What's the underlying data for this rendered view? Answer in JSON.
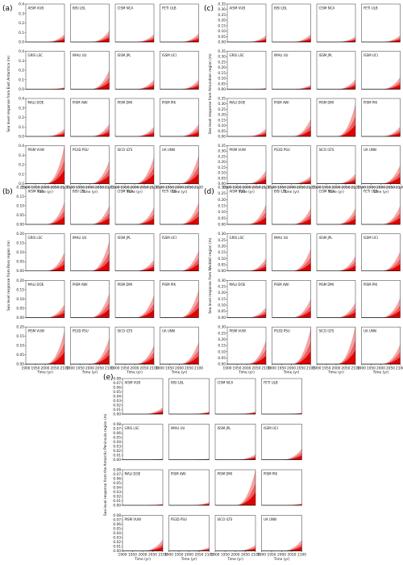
{
  "figure": {
    "models": [
      "AISM VUB",
      "BISI LBL",
      "CISM NCA",
      "FETI ULB",
      "GRIS LSC",
      "IMAU UU",
      "ISSM JPL",
      "ISSM UCI",
      "MALI DOE",
      "PISM AWI",
      "PISM DMI",
      "PISM PIK",
      "PISM VUW",
      "PS3D PSU",
      "SICO ILTS",
      "UA UNN"
    ],
    "x_ticks": [
      1900,
      1950,
      2000,
      2050,
      2100
    ],
    "x_tick_labels": [
      "1900",
      "1950",
      "2000",
      "2050",
      "2100"
    ],
    "xlabel": "Time (yr)",
    "colors": {
      "outer_band": "#f4a3a3",
      "mid_band": "#ef5b5b",
      "inner_band": "#e00000",
      "axis": "#000000",
      "baseline": "#000000"
    }
  },
  "chart_data": [
    {
      "panel": "(a)",
      "type": "area",
      "ylabel": "Sea level response from East Antarctica (m)",
      "ylim": [
        0,
        0.4
      ],
      "yticks": [
        0.0,
        0.1,
        0.2,
        0.3,
        0.4
      ],
      "ytick_labels": [
        "0.0",
        "0.1",
        "0.2",
        "0.3",
        "0.4"
      ],
      "xlim": [
        1900,
        2100
      ],
      "onset_year": 2000,
      "series_max_2100": [
        0.08,
        0.12,
        0.08,
        0.09,
        0.02,
        0.2,
        0.1,
        0.1,
        0.08,
        0.13,
        0.1,
        0.13,
        0.4,
        0.24,
        0.28,
        0.3
      ]
    },
    {
      "panel": "(b)",
      "type": "area",
      "ylabel": "Sea level response from Ross region (m)",
      "ylim": [
        0,
        0.2
      ],
      "yticks": [
        0.0,
        0.05,
        0.1,
        0.15,
        0.2
      ],
      "ytick_labels": [
        "0.00",
        "0.05",
        "0.10",
        "0.15",
        "0.20"
      ],
      "xlim": [
        1900,
        2100
      ],
      "onset_year": 2000,
      "series_max_2100": [
        0.12,
        0.1,
        0.09,
        0.12,
        0.1,
        0.16,
        0.06,
        0.11,
        0.07,
        0.13,
        0.12,
        0.15,
        0.18,
        0.14,
        0.1,
        0.12
      ]
    },
    {
      "panel": "(c)",
      "type": "area",
      "ylabel": "Sea level response from Amundsen region (m)",
      "ylim": [
        0,
        0.35
      ],
      "yticks": [
        0.0,
        0.05,
        0.1,
        0.15,
        0.2,
        0.25,
        0.3,
        0.35
      ],
      "ytick_labels": [
        "0.00",
        "0.05",
        "0.10",
        "0.15",
        "0.20",
        "0.25",
        "0.30",
        "0.35"
      ],
      "xlim": [
        1900,
        2100
      ],
      "onset_year": 2000,
      "series_max_2100": [
        0.06,
        0.07,
        0.05,
        0.06,
        0.01,
        0.04,
        0.09,
        0.11,
        0.07,
        0.16,
        0.3,
        0.09,
        0.12,
        0.07,
        0.09,
        0.17
      ]
    },
    {
      "panel": "(d)",
      "type": "area",
      "ylabel": "Sea level response from Weddell region (m)",
      "ylim": [
        0,
        0.3
      ],
      "yticks": [
        0.0,
        0.05,
        0.1,
        0.15,
        0.2,
        0.25,
        0.3
      ],
      "ytick_labels": [
        "0.00",
        "0.05",
        "0.10",
        "0.15",
        "0.20",
        "0.25",
        "0.30"
      ],
      "xlim": [
        1900,
        2100
      ],
      "onset_year": 2000,
      "series_max_2100": [
        0.16,
        0.13,
        0.13,
        0.15,
        0.1,
        0.18,
        0.12,
        0.16,
        0.08,
        0.15,
        0.12,
        0.16,
        0.19,
        0.29,
        0.31,
        0.16
      ]
    },
    {
      "panel": "(e)",
      "type": "area",
      "ylabel": "Sea level response from the Antarctic Peninsula region (m)",
      "ylim": [
        0,
        0.08
      ],
      "yticks": [
        0.0,
        0.01,
        0.02,
        0.03,
        0.04,
        0.05,
        0.06,
        0.07,
        0.08
      ],
      "ytick_labels": [
        "0.00",
        "0.01",
        "0.02",
        "0.03",
        "0.04",
        "0.05",
        "0.06",
        "0.07",
        "0.08"
      ],
      "xlim": [
        1900,
        2100
      ],
      "onset_year": 2000,
      "series_max_2100": [
        0.015,
        0.006,
        0.006,
        0.003,
        0.002,
        0.002,
        0.012,
        0.025,
        0.003,
        0.007,
        0.08,
        0.004,
        0.025,
        0.008,
        0.013,
        0.025
      ]
    }
  ]
}
